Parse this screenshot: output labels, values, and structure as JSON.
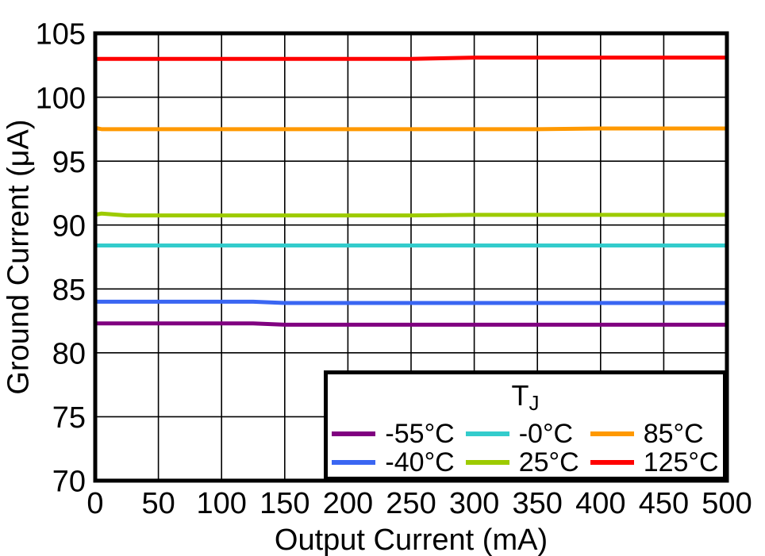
{
  "page": {
    "background": "#ffffff"
  },
  "legend": {
    "title_main": "T",
    "title_sub": "J"
  },
  "chart_data": {
    "type": "line",
    "title": "",
    "xlabel": "Output Current (mA)",
    "ylabel": "Ground Current (μA)",
    "xlim": [
      0,
      500
    ],
    "ylim": [
      70,
      105
    ],
    "xticks": [
      0,
      50,
      100,
      150,
      200,
      250,
      300,
      350,
      400,
      450,
      500
    ],
    "yticks": [
      70,
      75,
      80,
      85,
      90,
      95,
      100,
      105
    ],
    "grid": true,
    "grid_color": "#000000",
    "frame_color": "#000000",
    "legend_position": "inside-bottom-right",
    "legend_title": "TJ",
    "x": [
      0,
      5,
      25,
      50,
      75,
      100,
      125,
      150,
      200,
      250,
      300,
      350,
      400,
      450,
      500
    ],
    "series": [
      {
        "name": "-55°C",
        "color": "#800080",
        "values": [
          82.3,
          82.3,
          82.3,
          82.3,
          82.3,
          82.3,
          82.3,
          82.2,
          82.2,
          82.2,
          82.2,
          82.2,
          82.2,
          82.2,
          82.2
        ]
      },
      {
        "name": "-40°C",
        "color": "#3A66F2",
        "values": [
          84.0,
          84.0,
          84.0,
          84.0,
          84.0,
          84.0,
          84.0,
          83.9,
          83.9,
          83.9,
          83.9,
          83.9,
          83.9,
          83.9,
          83.9
        ]
      },
      {
        "name": "-0°C",
        "color": "#33CCCC",
        "values": [
          88.4,
          88.4,
          88.4,
          88.4,
          88.4,
          88.4,
          88.4,
          88.4,
          88.4,
          88.4,
          88.4,
          88.4,
          88.4,
          88.4,
          88.4
        ]
      },
      {
        "name": "25°C",
        "color": "#9DCB00",
        "values": [
          90.8,
          90.9,
          90.75,
          90.75,
          90.75,
          90.75,
          90.75,
          90.75,
          90.75,
          90.75,
          90.8,
          90.8,
          90.8,
          90.8,
          90.8
        ]
      },
      {
        "name": "85°C",
        "color": "#FF9900",
        "values": [
          97.6,
          97.5,
          97.5,
          97.5,
          97.5,
          97.5,
          97.5,
          97.5,
          97.5,
          97.5,
          97.5,
          97.5,
          97.55,
          97.55,
          97.55
        ]
      },
      {
        "name": "125°C",
        "color": "#FF0000",
        "values": [
          103.0,
          103.0,
          103.0,
          103.0,
          103.0,
          103.0,
          103.0,
          103.0,
          103.0,
          103.0,
          103.1,
          103.1,
          103.1,
          103.1,
          103.1
        ]
      }
    ]
  }
}
